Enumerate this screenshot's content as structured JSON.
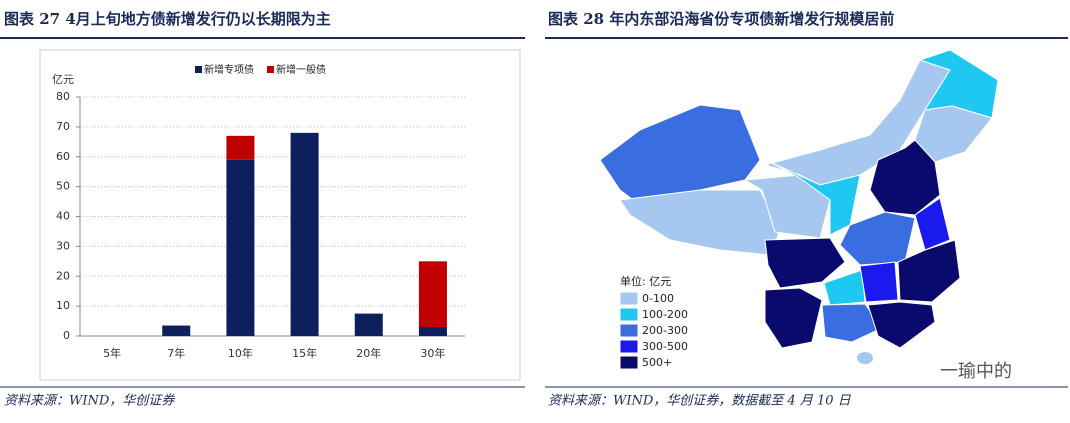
{
  "chart_data": {
    "type": "bar",
    "stacked": true,
    "title": "图表 27  4月上旬地方债新增发行仍以长期限为主",
    "y_label": "亿元",
    "categories": [
      "5年",
      "7年",
      "10年",
      "15年",
      "20年",
      "30年"
    ],
    "series": [
      {
        "name": "新增专项债",
        "color": "#0d1f5c",
        "values": [
          0,
          3.5,
          59,
          68,
          7.5,
          3
        ]
      },
      {
        "name": "新增一般债",
        "color": "#c00000",
        "values": [
          0,
          0,
          8,
          0,
          0,
          22
        ]
      }
    ],
    "ylim": [
      0,
      80
    ],
    "yticks": [
      0,
      10,
      20,
      30,
      40,
      50,
      60,
      70,
      80
    ],
    "grid": true,
    "legend": "top",
    "source": "资料来源：WIND，华创证券"
  },
  "map": {
    "title": "图表 28  年内东部沿海省份专项债新增发行规模居前",
    "legend_title": "单位: 亿元",
    "legend": [
      {
        "label": "0-100",
        "color": "#a6c8f0"
      },
      {
        "label": "100-200",
        "color": "#1ec8f0"
      },
      {
        "label": "200-300",
        "color": "#3a6ee0"
      },
      {
        "label": "300-500",
        "color": "#1a1aee"
      },
      {
        "label": "500+",
        "color": "#0a0a6e"
      }
    ],
    "watermark": "一瑜中的",
    "source": "资料来源：WIND，华创证券，数据截至 4 月 10 日"
  }
}
